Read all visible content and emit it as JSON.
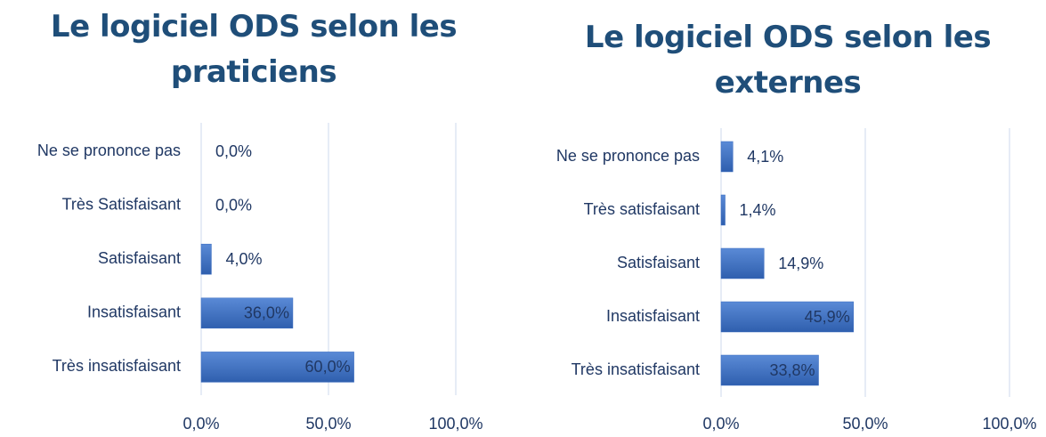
{
  "chart_data": [
    {
      "type": "bar",
      "orientation": "horizontal",
      "title": "Le logiciel ODS selon les praticiens",
      "categories": [
        "Ne se prononce pas",
        "Très Satisfaisant",
        "Satisfaisant",
        "Insatisfaisant",
        "Très insatisfaisant"
      ],
      "values": [
        0,
        0,
        4,
        36,
        60
      ],
      "value_labels": [
        "0,0%",
        "0,0%",
        "4,0%",
        "36,0%",
        "60,0%"
      ],
      "color": "#3a6cc0",
      "xlim": [
        0,
        100
      ],
      "xticks": [
        {
          "value": 0,
          "label": "0,0%"
        },
        {
          "value": 50,
          "label": "50,0%"
        },
        {
          "value": 100,
          "label": "100,0%"
        }
      ],
      "grid": true
    },
    {
      "type": "bar",
      "orientation": "horizontal",
      "title": "Le logiciel ODS selon les externes",
      "categories": [
        "Ne se prononce pas",
        "Très satisfaisant",
        "Satisfaisant",
        "Insatisfaisant",
        "Très insatisfaisant"
      ],
      "values": [
        4.1,
        1.4,
        14.9,
        45.9,
        33.8
      ],
      "value_labels": [
        "4,1%",
        "1,4%",
        "14,9%",
        "45,9%",
        "33,8%"
      ],
      "color": "#3a6cc0",
      "xlim": [
        0,
        100
      ],
      "xticks": [
        {
          "value": 0,
          "label": "0,0%"
        },
        {
          "value": 50,
          "label": "50,0%"
        },
        {
          "value": 100,
          "label": "100,0%"
        }
      ],
      "grid": true
    }
  ]
}
